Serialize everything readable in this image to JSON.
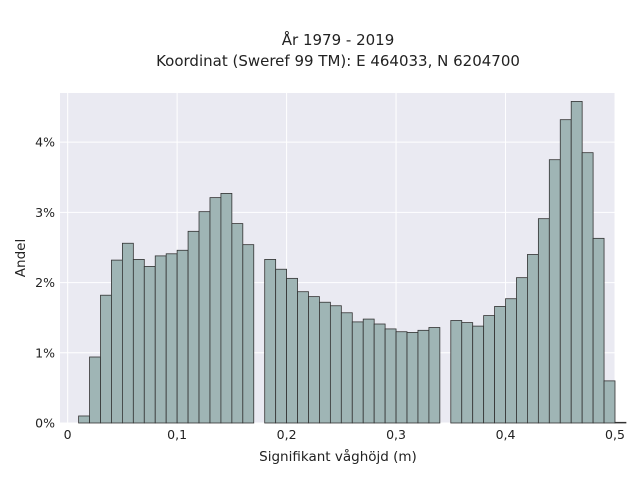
{
  "chart_data": {
    "type": "bar",
    "title": [
      "År 1979 - 2019",
      "Koordinat (Sweref 99 TM): E 464033, N 6204700"
    ],
    "xlabel": "Signifikant våghöjd (m)",
    "ylabel": "Andel",
    "xlim": [
      -0.007,
      0.5
    ],
    "ylim": [
      0,
      4.7
    ],
    "x_ticks": [
      0,
      0.1,
      0.2,
      0.3,
      0.4,
      0.5
    ],
    "x_tick_labels": [
      "0",
      "0,1",
      "0,2",
      "0,3",
      "0,4",
      "0,5"
    ],
    "y_ticks": [
      0,
      1,
      2,
      3,
      4
    ],
    "y_tick_labels": [
      "0%",
      "1%",
      "2%",
      "3%",
      "4%"
    ],
    "bin_start": 0.01,
    "bin_width": 0.01,
    "values": [
      0.1,
      0.94,
      1.82,
      2.32,
      2.56,
      2.33,
      2.23,
      2.38,
      2.41,
      2.46,
      2.73,
      3.01,
      3.21,
      3.27,
      2.84,
      2.54,
      0,
      2.33,
      2.19,
      2.06,
      1.87,
      1.8,
      1.72,
      1.67,
      1.57,
      1.44,
      1.48,
      1.41,
      1.34,
      1.3,
      1.29,
      1.32,
      1.36,
      0,
      1.46,
      1.43,
      1.38,
      1.53,
      1.66,
      1.77,
      2.07,
      2.4,
      2.91,
      3.75,
      4.32,
      4.58,
      3.85,
      2.63,
      0.6,
      0.01
    ],
    "style": {
      "background": "#eaeaf2",
      "bar_fill": "#9fb5b5",
      "bar_edge": "#333333",
      "grid": true,
      "grid_color": "#ffffff"
    }
  }
}
